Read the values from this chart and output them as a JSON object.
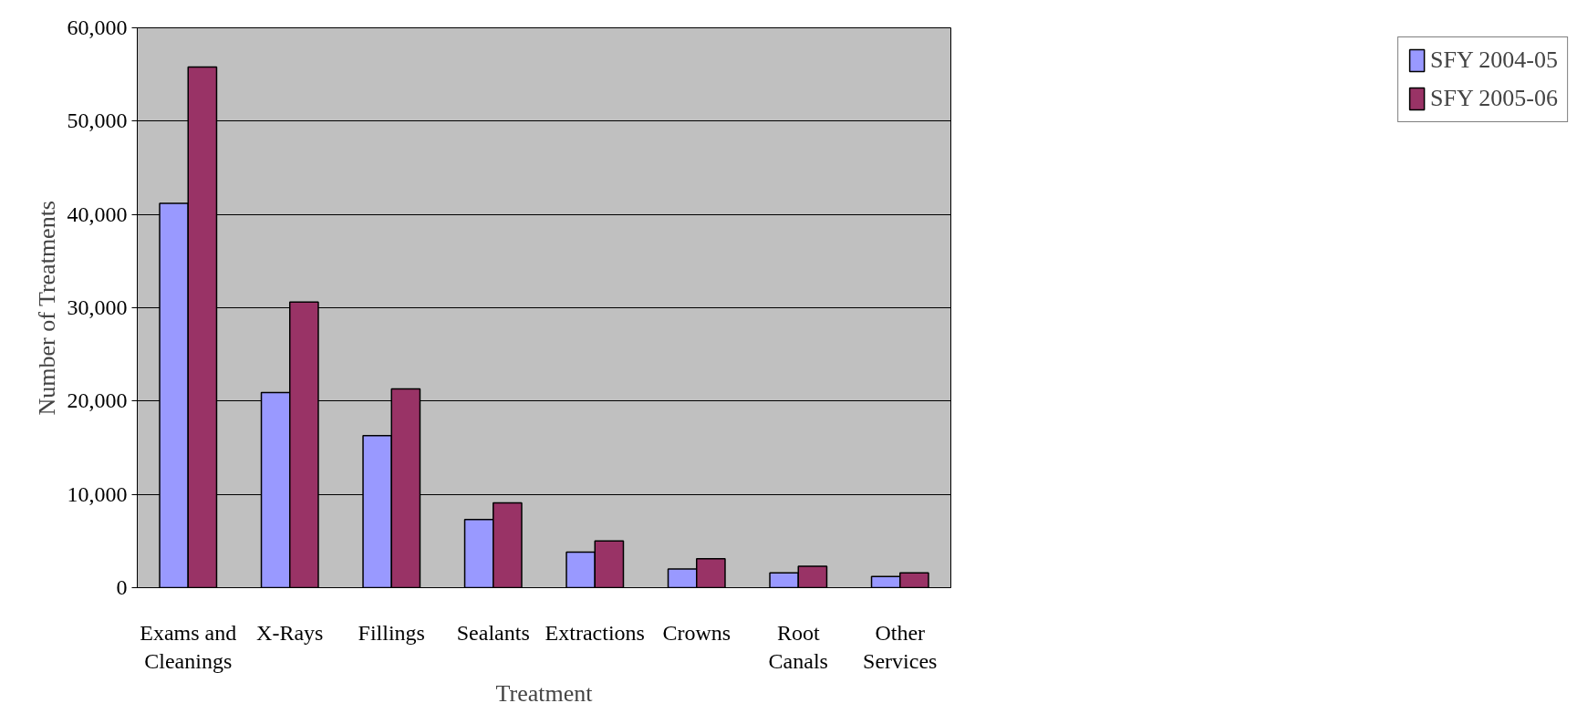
{
  "chart_data": {
    "type": "bar",
    "xlabel": "Treatment",
    "ylabel": "Number of Treatments",
    "categories": [
      "Exams and Cleanings",
      "X-Rays",
      "Fillings",
      "Sealants",
      "Extractions",
      "Crowns",
      "Root Canals",
      "Other Services"
    ],
    "series": [
      {
        "name": "SFY 2004-05",
        "color": "#9999ff",
        "values": [
          41200,
          20900,
          16300,
          7300,
          3800,
          2000,
          1600,
          1200
        ]
      },
      {
        "name": "SFY 2005-06",
        "color": "#993366",
        "values": [
          55800,
          30600,
          21300,
          9100,
          5000,
          3100,
          2300,
          1600
        ]
      }
    ],
    "ylim": [
      0,
      60000
    ],
    "yticks": [
      0,
      {
        "value": 10000,
        "label": "10,000"
      },
      {
        "value": 20000,
        "label": "20,000"
      },
      {
        "value": 30000,
        "label": "30,000"
      },
      {
        "value": 40000,
        "label": "40,000"
      },
      {
        "value": 50000,
        "label": "50,000"
      },
      {
        "value": 60000,
        "label": "60,000"
      }
    ],
    "grid": "y",
    "legend": "right"
  }
}
